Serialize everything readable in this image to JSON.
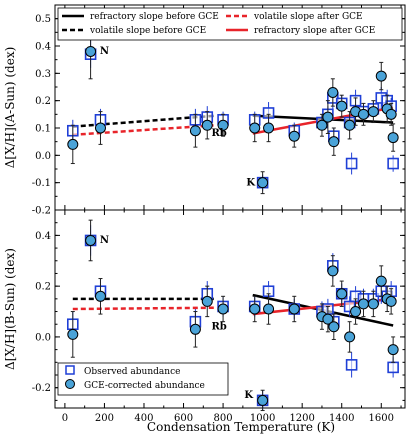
{
  "chart_data": [
    {
      "type": "scatter",
      "ylabel": "Δ[X/H](A-Sun) (dex)",
      "ylim": [
        -0.2,
        0.55
      ],
      "yticks": [
        "0.5",
        "0.4",
        "0.3",
        "0.2",
        "0.1",
        "0.0",
        "-0.1",
        "-0.2"
      ],
      "yticks_values": [
        0.5,
        0.4,
        0.3,
        0.2,
        0.1,
        0.0,
        -0.1,
        -0.2
      ],
      "xlim": [
        -50,
        1720
      ],
      "legend": {
        "placement": "top",
        "entries": [
          {
            "label": "refractory slope before GCE",
            "color": "#000000",
            "style": "solid"
          },
          {
            "label": "volatile slope before GCE",
            "color": "#000000",
            "style": "dashed"
          },
          {
            "label": "volatile slope after GCE",
            "color": "#e8242a",
            "style": "dashed"
          },
          {
            "label": "refractory slope after GCE",
            "color": "#e8242a",
            "style": "solid"
          }
        ]
      },
      "annotations": [
        {
          "text": "N",
          "x": 200,
          "y": 0.37
        },
        {
          "text": "Rb",
          "x": 780,
          "y": 0.07
        },
        {
          "text": "K",
          "x": 940,
          "y": -0.11
        }
      ],
      "lines": {
        "refractory_before": [
          [
            950,
            0.145
          ],
          [
            1660,
            0.12
          ]
        ],
        "volatile_before": [
          [
            40,
            0.105
          ],
          [
            760,
            0.145
          ]
        ],
        "volatile_after": [
          [
            40,
            0.075
          ],
          [
            760,
            0.11
          ]
        ],
        "refractory_after": [
          [
            950,
            0.08
          ],
          [
            1660,
            0.175
          ]
        ]
      },
      "observed": [
        {
          "x": 40,
          "y": 0.09,
          "err": 0.04
        },
        {
          "x": 130,
          "y": 0.37,
          "err": 0.05
        },
        {
          "x": 180,
          "y": 0.13,
          "err": 0.04
        },
        {
          "x": 660,
          "y": 0.13,
          "err": 0.04
        },
        {
          "x": 720,
          "y": 0.14,
          "err": 0.04
        },
        {
          "x": 800,
          "y": 0.13,
          "err": 0.03
        },
        {
          "x": 960,
          "y": 0.13,
          "err": 0.03
        },
        {
          "x": 1000,
          "y": -0.1,
          "err": 0.03
        },
        {
          "x": 1030,
          "y": 0.155,
          "err": 0.04
        },
        {
          "x": 1160,
          "y": 0.09,
          "err": 0.03
        },
        {
          "x": 1300,
          "y": 0.12,
          "err": 0.03
        },
        {
          "x": 1330,
          "y": 0.15,
          "err": 0.03
        },
        {
          "x": 1355,
          "y": 0.21,
          "err": 0.04
        },
        {
          "x": 1360,
          "y": 0.07,
          "err": 0.03
        },
        {
          "x": 1400,
          "y": 0.19,
          "err": 0.03
        },
        {
          "x": 1440,
          "y": 0.12,
          "err": 0.03
        },
        {
          "x": 1450,
          "y": -0.03,
          "err": 0.04
        },
        {
          "x": 1470,
          "y": 0.2,
          "err": 0.04
        },
        {
          "x": 1510,
          "y": 0.16,
          "err": 0.03
        },
        {
          "x": 1560,
          "y": 0.17,
          "err": 0.03
        },
        {
          "x": 1600,
          "y": 0.21,
          "err": 0.04
        },
        {
          "x": 1630,
          "y": 0.2,
          "err": 0.04
        },
        {
          "x": 1650,
          "y": 0.18,
          "err": 0.03
        },
        {
          "x": 1660,
          "y": -0.03,
          "err": 0.03
        }
      ],
      "corrected": [
        {
          "x": 40,
          "y": 0.04,
          "err": 0.07
        },
        {
          "x": 130,
          "y": 0.38,
          "err": 0.1
        },
        {
          "x": 180,
          "y": 0.1,
          "err": 0.06
        },
        {
          "x": 660,
          "y": 0.09,
          "err": 0.06
        },
        {
          "x": 720,
          "y": 0.11,
          "err": 0.05
        },
        {
          "x": 800,
          "y": 0.11,
          "err": 0.04
        },
        {
          "x": 960,
          "y": 0.1,
          "err": 0.05
        },
        {
          "x": 1000,
          "y": -0.1,
          "err": 0.04
        },
        {
          "x": 1030,
          "y": 0.1,
          "err": 0.05
        },
        {
          "x": 1160,
          "y": 0.07,
          "err": 0.04
        },
        {
          "x": 1300,
          "y": 0.11,
          "err": 0.04
        },
        {
          "x": 1330,
          "y": 0.14,
          "err": 0.06
        },
        {
          "x": 1355,
          "y": 0.23,
          "err": 0.05
        },
        {
          "x": 1360,
          "y": 0.05,
          "err": 0.05
        },
        {
          "x": 1400,
          "y": 0.18,
          "err": 0.04
        },
        {
          "x": 1440,
          "y": 0.11,
          "err": 0.05
        },
        {
          "x": 1470,
          "y": 0.16,
          "err": 0.05
        },
        {
          "x": 1510,
          "y": 0.15,
          "err": 0.04
        },
        {
          "x": 1560,
          "y": 0.16,
          "err": 0.04
        },
        {
          "x": 1600,
          "y": 0.29,
          "err": 0.05
        },
        {
          "x": 1630,
          "y": 0.17,
          "err": 0.05
        },
        {
          "x": 1650,
          "y": 0.15,
          "err": 0.04
        },
        {
          "x": 1660,
          "y": 0.065,
          "err": 0.05
        }
      ]
    },
    {
      "type": "scatter",
      "xlabel": "Condensation Temperature (K)",
      "ylabel": "Δ[X/H](B-Sun) (dex)",
      "ylim": [
        -0.28,
        0.5
      ],
      "yticks": [
        "0.4",
        "0.2",
        "0.0",
        "-0.2"
      ],
      "yticks_values": [
        0.4,
        0.2,
        0.0,
        -0.2
      ],
      "xlim": [
        -50,
        1720
      ],
      "xticks": [
        "0",
        "200",
        "400",
        "600",
        "800",
        "1000",
        "1200",
        "1400",
        "1600"
      ],
      "xticks_values": [
        0,
        200,
        400,
        600,
        800,
        1000,
        1200,
        1400,
        1600
      ],
      "legend": {
        "placement": "bottom-left",
        "entries": [
          {
            "label": "Observed abundance",
            "marker": "open-square",
            "color": "#1f3fd6"
          },
          {
            "label": "GCE-corrected abundance",
            "marker": "filled-circle",
            "color": "#4aa3d8"
          }
        ]
      },
      "annotations": [
        {
          "text": "N",
          "x": 200,
          "y": 0.37
        },
        {
          "text": "Rb",
          "x": 780,
          "y": 0.03
        },
        {
          "text": "K",
          "x": 930,
          "y": -0.24
        }
      ],
      "lines": {
        "refractory_before": [
          [
            950,
            0.165
          ],
          [
            1660,
            0.045
          ]
        ],
        "volatile_before": [
          [
            40,
            0.15
          ],
          [
            760,
            0.15
          ]
        ],
        "volatile_after": [
          [
            40,
            0.11
          ],
          [
            760,
            0.115
          ]
        ],
        "refractory_after": [
          [
            950,
            0.09
          ],
          [
            1660,
            0.15
          ]
        ]
      },
      "observed": [
        {
          "x": 40,
          "y": 0.05,
          "err": 0.05
        },
        {
          "x": 130,
          "y": 0.38,
          "err": 0.06
        },
        {
          "x": 180,
          "y": 0.18,
          "err": 0.05
        },
        {
          "x": 660,
          "y": 0.06,
          "err": 0.05
        },
        {
          "x": 720,
          "y": 0.17,
          "err": 0.05
        },
        {
          "x": 800,
          "y": 0.12,
          "err": 0.04
        },
        {
          "x": 960,
          "y": 0.12,
          "err": 0.04
        },
        {
          "x": 1000,
          "y": -0.25,
          "err": 0.04
        },
        {
          "x": 1030,
          "y": 0.18,
          "err": 0.04
        },
        {
          "x": 1160,
          "y": 0.11,
          "err": 0.04
        },
        {
          "x": 1300,
          "y": 0.1,
          "err": 0.04
        },
        {
          "x": 1330,
          "y": 0.11,
          "err": 0.04
        },
        {
          "x": 1355,
          "y": 0.28,
          "err": 0.05
        },
        {
          "x": 1360,
          "y": 0.06,
          "err": 0.04
        },
        {
          "x": 1400,
          "y": 0.17,
          "err": 0.04
        },
        {
          "x": 1440,
          "y": 0.12,
          "err": 0.04
        },
        {
          "x": 1450,
          "y": -0.11,
          "err": 0.05
        },
        {
          "x": 1470,
          "y": 0.16,
          "err": 0.04
        },
        {
          "x": 1510,
          "y": 0.15,
          "err": 0.04
        },
        {
          "x": 1560,
          "y": 0.15,
          "err": 0.04
        },
        {
          "x": 1600,
          "y": 0.18,
          "err": 0.05
        },
        {
          "x": 1630,
          "y": 0.16,
          "err": 0.04
        },
        {
          "x": 1650,
          "y": 0.18,
          "err": 0.04
        },
        {
          "x": 1660,
          "y": -0.12,
          "err": 0.04
        }
      ],
      "corrected": [
        {
          "x": 40,
          "y": 0.01,
          "err": 0.09
        },
        {
          "x": 130,
          "y": 0.38,
          "err": 0.08
        },
        {
          "x": 180,
          "y": 0.16,
          "err": 0.07
        },
        {
          "x": 660,
          "y": 0.03,
          "err": 0.07
        },
        {
          "x": 720,
          "y": 0.14,
          "err": 0.06
        },
        {
          "x": 800,
          "y": 0.11,
          "err": 0.05
        },
        {
          "x": 960,
          "y": 0.11,
          "err": 0.05
        },
        {
          "x": 1000,
          "y": -0.25,
          "err": 0.04
        },
        {
          "x": 1030,
          "y": 0.11,
          "err": 0.06
        },
        {
          "x": 1160,
          "y": 0.11,
          "err": 0.05
        },
        {
          "x": 1300,
          "y": 0.08,
          "err": 0.05
        },
        {
          "x": 1330,
          "y": 0.07,
          "err": 0.05
        },
        {
          "x": 1355,
          "y": 0.26,
          "err": 0.06
        },
        {
          "x": 1360,
          "y": 0.04,
          "err": 0.05
        },
        {
          "x": 1400,
          "y": 0.17,
          "err": 0.05
        },
        {
          "x": 1440,
          "y": 0.0,
          "err": 0.06
        },
        {
          "x": 1470,
          "y": 0.1,
          "err": 0.05
        },
        {
          "x": 1510,
          "y": 0.13,
          "err": 0.05
        },
        {
          "x": 1560,
          "y": 0.13,
          "err": 0.05
        },
        {
          "x": 1600,
          "y": 0.22,
          "err": 0.06
        },
        {
          "x": 1630,
          "y": 0.15,
          "err": 0.05
        },
        {
          "x": 1650,
          "y": 0.14,
          "err": 0.05
        },
        {
          "x": 1660,
          "y": -0.05,
          "err": 0.05
        }
      ]
    }
  ],
  "colors": {
    "observed": "#1f3fd6",
    "corrected_fill": "#4aa3d8",
    "red": "#e8242a",
    "black": "#000000"
  }
}
